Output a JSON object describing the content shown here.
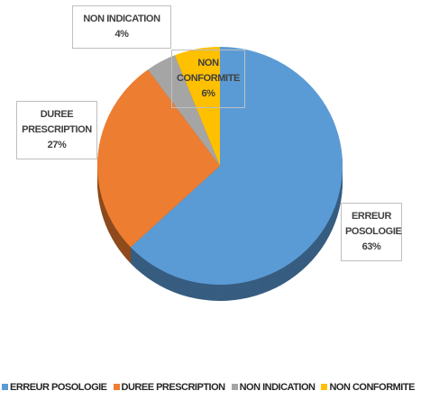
{
  "chart_data": {
    "type": "pie",
    "categories": [
      "ERREUR POSOLOGIE",
      "DUREE PRESCRIPTION",
      "NON INDICATION",
      "NON CONFORMITE"
    ],
    "values": [
      63,
      27,
      4,
      6
    ],
    "value_labels": [
      "63%",
      "27%",
      "4%",
      "6%"
    ],
    "colors": [
      "#5b9bd5",
      "#ed7d31",
      "#a5a5a5",
      "#ffc000"
    ],
    "legend": "bottom"
  }
}
